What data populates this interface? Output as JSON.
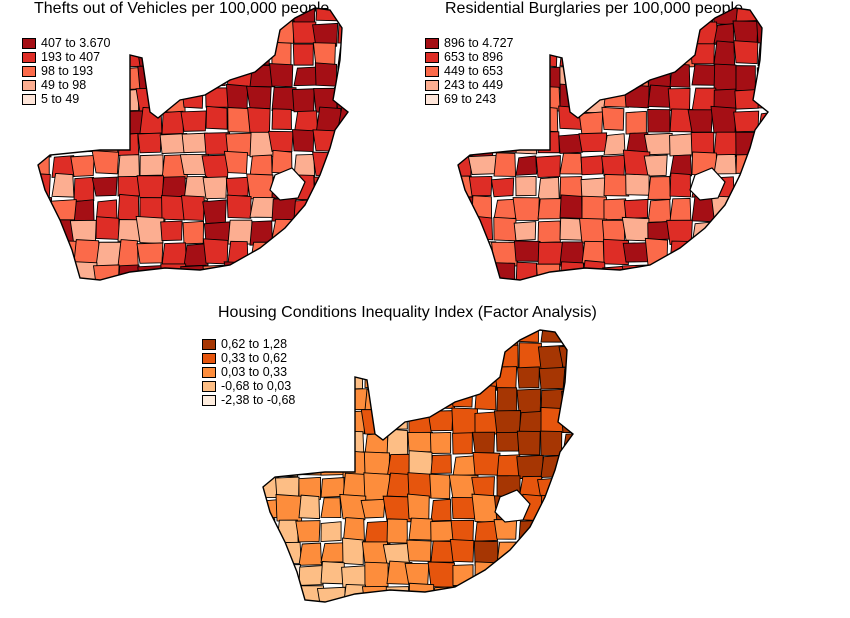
{
  "maps": [
    {
      "title": "Thefts out of Vehicles per 100,000 people",
      "legend": [
        {
          "label": "407 to 3.670",
          "color": "#a50f15"
        },
        {
          "label": "193 to 407",
          "color": "#de2d26"
        },
        {
          "label": "98 to 193",
          "color": "#fb6a4a"
        },
        {
          "label": "49 to 98",
          "color": "#fcae91"
        },
        {
          "label": "5 to 49",
          "color": "#fee5d9"
        }
      ]
    },
    {
      "title": "Residential Burglaries per 100,000 people",
      "legend": [
        {
          "label": "896 to 4.727",
          "color": "#a50f15"
        },
        {
          "label": "653 to 896",
          "color": "#de2d26"
        },
        {
          "label": "449 to 653",
          "color": "#fb6a4a"
        },
        {
          "label": "243 to 449",
          "color": "#fcae91"
        },
        {
          "label": "69 to 243",
          "color": "#fee5d9"
        }
      ]
    },
    {
      "title": "Housing Conditions Inequality Index (Factor Analysis)",
      "legend": [
        {
          "label": "0,62 to 1,28",
          "color": "#a63603"
        },
        {
          "label": "0,33 to 0,62",
          "color": "#e6550d"
        },
        {
          "label": "0,03 to 0,33",
          "color": "#fd8d3c"
        },
        {
          "label": "-0,68 to 0,03",
          "color": "#fdbe85"
        },
        {
          "label": "-2,38 to -0,68",
          "color": "#feedde"
        }
      ]
    }
  ]
}
